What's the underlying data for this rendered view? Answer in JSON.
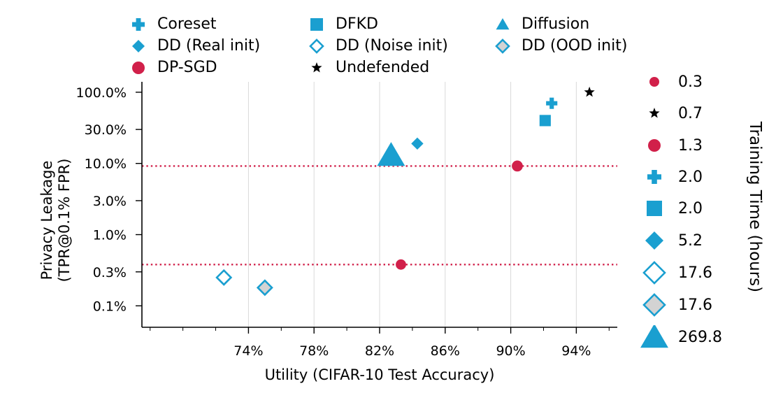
{
  "chart_data": {
    "type": "scatter",
    "xlabel": "Utility (CIFAR-10 Test Accuracy)",
    "ylabel": [
      "Privacy Leakage",
      "(TPR@0.1% FPR)"
    ],
    "xlim": [
      67.5,
      96.5
    ],
    "ylim_log": [
      0.05,
      140
    ],
    "x_ticks": [
      74,
      78,
      82,
      86,
      90,
      94
    ],
    "x_tick_labels": [
      "74%",
      "78%",
      "82%",
      "86%",
      "90%",
      "94%"
    ],
    "y_ticks": [
      0.1,
      0.3,
      1.0,
      3.0,
      10.0,
      30.0,
      100.0
    ],
    "y_tick_labels": [
      "0.1%",
      "0.3%",
      "1.0%",
      "3.0%",
      "10.0%",
      "30.0%",
      "100.0%"
    ],
    "y_scale": "log",
    "grid": "vertical",
    "reference_lines": [
      {
        "y": 9.2,
        "color": "#d1204a",
        "style": "dotted"
      },
      {
        "y": 0.38,
        "color": "#d1204a",
        "style": "dotted"
      }
    ],
    "series": [
      {
        "name": "Coreset",
        "marker": "plus",
        "color": "#1a9fd0",
        "points": [
          {
            "x": 92.5,
            "y": 70,
            "training_time": 2.0
          }
        ]
      },
      {
        "name": "DFKD",
        "marker": "square",
        "color": "#1a9fd0",
        "points": [
          {
            "x": 92.1,
            "y": 40,
            "training_time": 2.0
          }
        ]
      },
      {
        "name": "Diffusion",
        "marker": "triangle",
        "color": "#1a9fd0",
        "points": [
          {
            "x": 82.7,
            "y": 13,
            "training_time": 269.8
          }
        ]
      },
      {
        "name": "DD (Real init)",
        "marker": "diamond",
        "color": "#1a9fd0",
        "points": [
          {
            "x": 84.3,
            "y": 19,
            "training_time": 5.2
          }
        ]
      },
      {
        "name": "DD (Noise init)",
        "marker": "diamond-open",
        "color": "#1a9fd0",
        "points": [
          {
            "x": 72.5,
            "y": 0.25,
            "training_time": 17.6
          }
        ]
      },
      {
        "name": "DD (OOD init)",
        "marker": "diamond-gray",
        "color": "#1a9fd0",
        "points": [
          {
            "x": 75.0,
            "y": 0.18,
            "training_time": 17.6
          }
        ]
      },
      {
        "name": "DP-SGD",
        "marker": "circle",
        "color": "#d1204a",
        "points": [
          {
            "x": 90.4,
            "y": 9.2,
            "training_time": 1.3
          },
          {
            "x": 83.3,
            "y": 0.38,
            "training_time": 0.3
          }
        ]
      },
      {
        "name": "Undefended",
        "marker": "star",
        "color": "#000000",
        "points": [
          {
            "x": 94.8,
            "y": 100,
            "training_time": 0.7
          }
        ]
      }
    ],
    "legend": {
      "placement": "top",
      "entries": [
        {
          "label": "Coreset",
          "marker": "plus"
        },
        {
          "label": "DFKD",
          "marker": "square"
        },
        {
          "label": "Diffusion",
          "marker": "triangle"
        },
        {
          "label": "DD (Real init)",
          "marker": "diamond"
        },
        {
          "label": "DD (Noise init)",
          "marker": "diamond-open"
        },
        {
          "label": "DD (OOD init)",
          "marker": "diamond-gray"
        },
        {
          "label": "DP-SGD",
          "marker": "circle"
        },
        {
          "label": "Undefended",
          "marker": "star"
        }
      ]
    },
    "size_legend": {
      "title": "Training Time (hours)",
      "placement": "right",
      "entries": [
        {
          "label": "0.3",
          "marker": "circle",
          "color": "#d1204a"
        },
        {
          "label": "0.7",
          "marker": "star",
          "color": "#000000"
        },
        {
          "label": "1.3",
          "marker": "circle",
          "color": "#d1204a"
        },
        {
          "label": "2.0",
          "marker": "plus",
          "color": "#1a9fd0"
        },
        {
          "label": "2.0",
          "marker": "square",
          "color": "#1a9fd0"
        },
        {
          "label": "5.2",
          "marker": "diamond",
          "color": "#1a9fd0"
        },
        {
          "label": "17.6",
          "marker": "diamond-open",
          "color": "#1a9fd0"
        },
        {
          "label": "17.6",
          "marker": "diamond-gray",
          "color": "#1a9fd0"
        },
        {
          "label": "269.8",
          "marker": "triangle",
          "color": "#1a9fd0"
        }
      ]
    }
  }
}
